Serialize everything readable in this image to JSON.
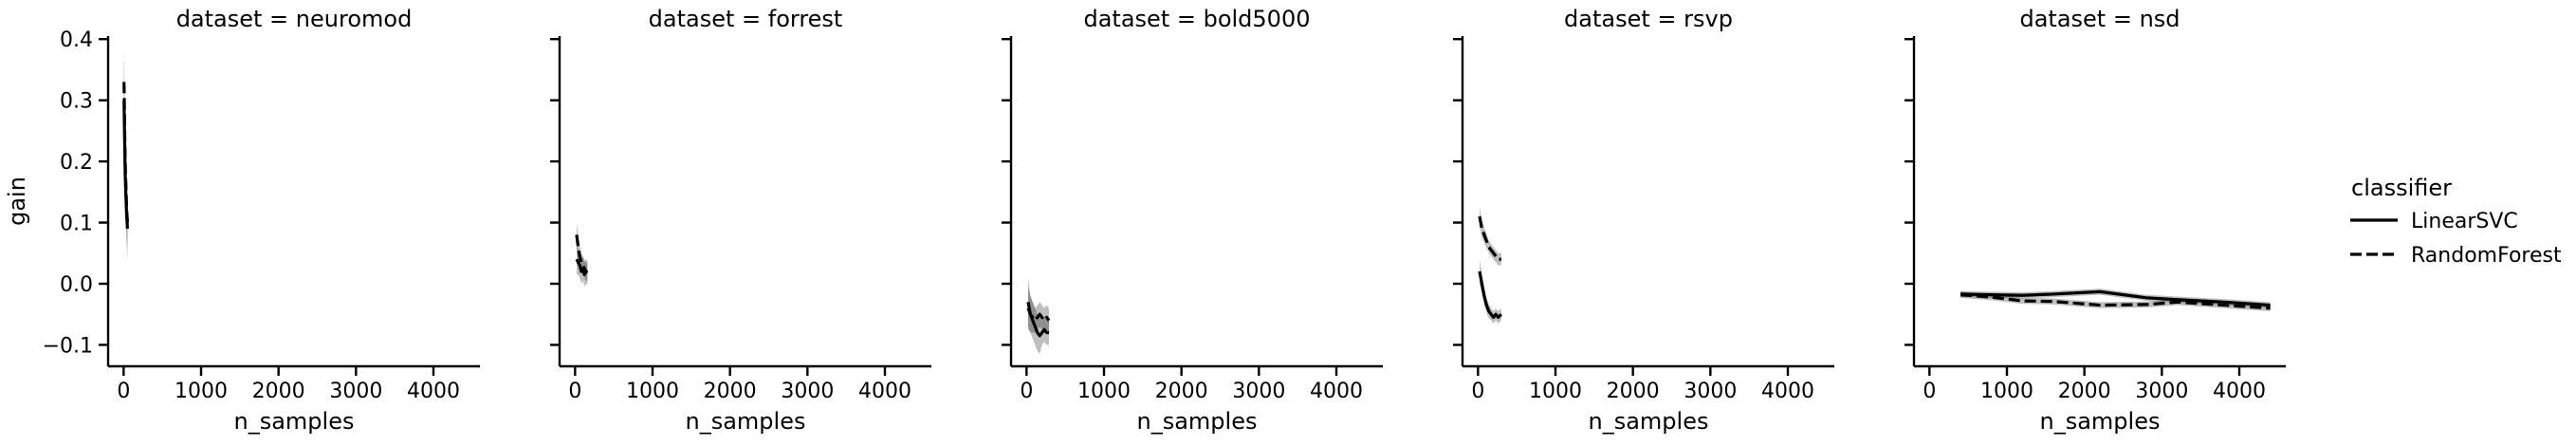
{
  "chart_data": {
    "type": "line",
    "facet_var": "dataset",
    "xlabel": "n_samples",
    "ylabel": "gain",
    "xlim": [
      -200,
      4600
    ],
    "ylim": [
      -0.135,
      0.405
    ],
    "xticks": [
      0,
      1000,
      2000,
      3000,
      4000
    ],
    "yticks": [
      -0.1,
      0.0,
      0.1,
      0.2,
      0.3,
      0.4
    ],
    "ytick_labels": [
      "−0.1",
      "0.0",
      "0.1",
      "0.2",
      "0.3",
      "0.4"
    ],
    "xtick_labels": [
      "0",
      "1000",
      "2000",
      "3000",
      "4000"
    ],
    "shared_y": true,
    "grid": false,
    "legend": {
      "title": "classifier",
      "placement": "right",
      "entries": [
        {
          "name": "LinearSVC",
          "style": "solid"
        },
        {
          "name": "RandomForest",
          "style": "dashed"
        }
      ]
    },
    "colors": {
      "line": "#000000",
      "band": "#b0b0b0"
    },
    "panels": [
      {
        "title": "dataset = neuromod",
        "series": [
          {
            "name": "LinearSVC",
            "style": "solid",
            "x": [
              5,
              10,
              15,
              20,
              30,
              40,
              50
            ],
            "y": [
              0.3,
              0.26,
              0.22,
              0.18,
              0.14,
              0.11,
              0.09
            ],
            "ci": [
              0.07,
              0.07,
              0.06,
              0.06,
              0.05,
              0.05,
              0.05
            ]
          },
          {
            "name": "RandomForest",
            "style": "dashed",
            "x": [
              5,
              10,
              15,
              20,
              30,
              40,
              50
            ],
            "y": [
              0.33,
              0.29,
              0.24,
              0.2,
              0.16,
              0.12,
              0.1
            ],
            "ci": [
              0.05,
              0.05,
              0.05,
              0.04,
              0.04,
              0.04,
              0.04
            ]
          }
        ]
      },
      {
        "title": "dataset = forrest",
        "series": [
          {
            "name": "LinearSVC",
            "style": "solid",
            "x": [
              20,
              40,
              60,
              80,
              100,
              120,
              140,
              160
            ],
            "y": [
              0.04,
              0.035,
              0.03,
              0.02,
              0.025,
              0.015,
              0.02,
              0.018
            ],
            "ci": [
              0.025,
              0.02,
              0.02,
              0.02,
              0.02,
              0.02,
              0.02,
              0.02
            ]
          },
          {
            "name": "RandomForest",
            "style": "dashed",
            "x": [
              20,
              40,
              60,
              80,
              100,
              120,
              140,
              160
            ],
            "y": [
              0.08,
              0.06,
              0.045,
              0.035,
              0.03,
              0.025,
              0.02,
              0.02
            ],
            "ci": [
              0.02,
              0.02,
              0.02,
              0.015,
              0.015,
              0.015,
              0.015,
              0.015
            ]
          }
        ]
      },
      {
        "title": "dataset = bold5000",
        "series": [
          {
            "name": "LinearSVC",
            "style": "solid",
            "x": [
              20,
              50,
              80,
              110,
              140,
              170,
              200,
              230,
              260,
              290
            ],
            "y": [
              -0.03,
              -0.05,
              -0.06,
              -0.07,
              -0.08,
              -0.085,
              -0.08,
              -0.075,
              -0.08,
              -0.08
            ],
            "ci": [
              0.04,
              0.03,
              0.03,
              0.03,
              0.03,
              0.03,
              0.02,
              0.02,
              0.02,
              0.02
            ]
          },
          {
            "name": "RandomForest",
            "style": "dashed",
            "x": [
              20,
              50,
              80,
              110,
              140,
              170,
              200,
              230,
              260,
              290
            ],
            "y": [
              -0.04,
              -0.05,
              -0.055,
              -0.06,
              -0.055,
              -0.05,
              -0.055,
              -0.06,
              -0.055,
              -0.06
            ],
            "ci": [
              0.035,
              0.03,
              0.025,
              0.02,
              0.02,
              0.02,
              0.02,
              0.02,
              0.02,
              0.02
            ]
          }
        ]
      },
      {
        "title": "dataset = rsvp",
        "series": [
          {
            "name": "LinearSVC",
            "style": "solid",
            "x": [
              20,
              50,
              80,
              110,
              140,
              170,
              200,
              230,
              260,
              300
            ],
            "y": [
              0.02,
              0.0,
              -0.02,
              -0.035,
              -0.045,
              -0.05,
              -0.055,
              -0.05,
              -0.055,
              -0.05
            ],
            "ci": [
              0.02,
              0.015,
              0.015,
              0.012,
              0.012,
              0.01,
              0.01,
              0.01,
              0.01,
              0.01
            ]
          },
          {
            "name": "RandomForest",
            "style": "dashed",
            "x": [
              20,
              50,
              80,
              110,
              140,
              170,
              200,
              230,
              260,
              300
            ],
            "y": [
              0.11,
              0.09,
              0.08,
              0.07,
              0.06,
              0.055,
              0.05,
              0.045,
              0.04,
              0.04
            ],
            "ci": [
              0.015,
              0.015,
              0.012,
              0.012,
              0.01,
              0.01,
              0.01,
              0.01,
              0.01,
              0.01
            ]
          }
        ]
      },
      {
        "title": "dataset = nsd",
        "series": [
          {
            "name": "LinearSVC",
            "style": "solid",
            "x": [
              400,
              800,
              1200,
              1600,
              2200,
              2800,
              3200,
              3800,
              4400
            ],
            "y": [
              -0.017,
              -0.018,
              -0.019,
              -0.017,
              -0.013,
              -0.023,
              -0.026,
              -0.03,
              -0.035
            ],
            "ci": [
              0.005,
              0.005,
              0.005,
              0.005,
              0.005,
              0.005,
              0.005,
              0.005,
              0.005
            ]
          },
          {
            "name": "RandomForest",
            "style": "dashed",
            "x": [
              400,
              800,
              1200,
              1600,
              2200,
              2800,
              3200,
              3800,
              4400
            ],
            "y": [
              -0.018,
              -0.022,
              -0.028,
              -0.029,
              -0.035,
              -0.034,
              -0.03,
              -0.035,
              -0.04
            ],
            "ci": [
              0.005,
              0.005,
              0.005,
              0.005,
              0.005,
              0.005,
              0.005,
              0.005,
              0.005
            ]
          }
        ]
      }
    ]
  }
}
